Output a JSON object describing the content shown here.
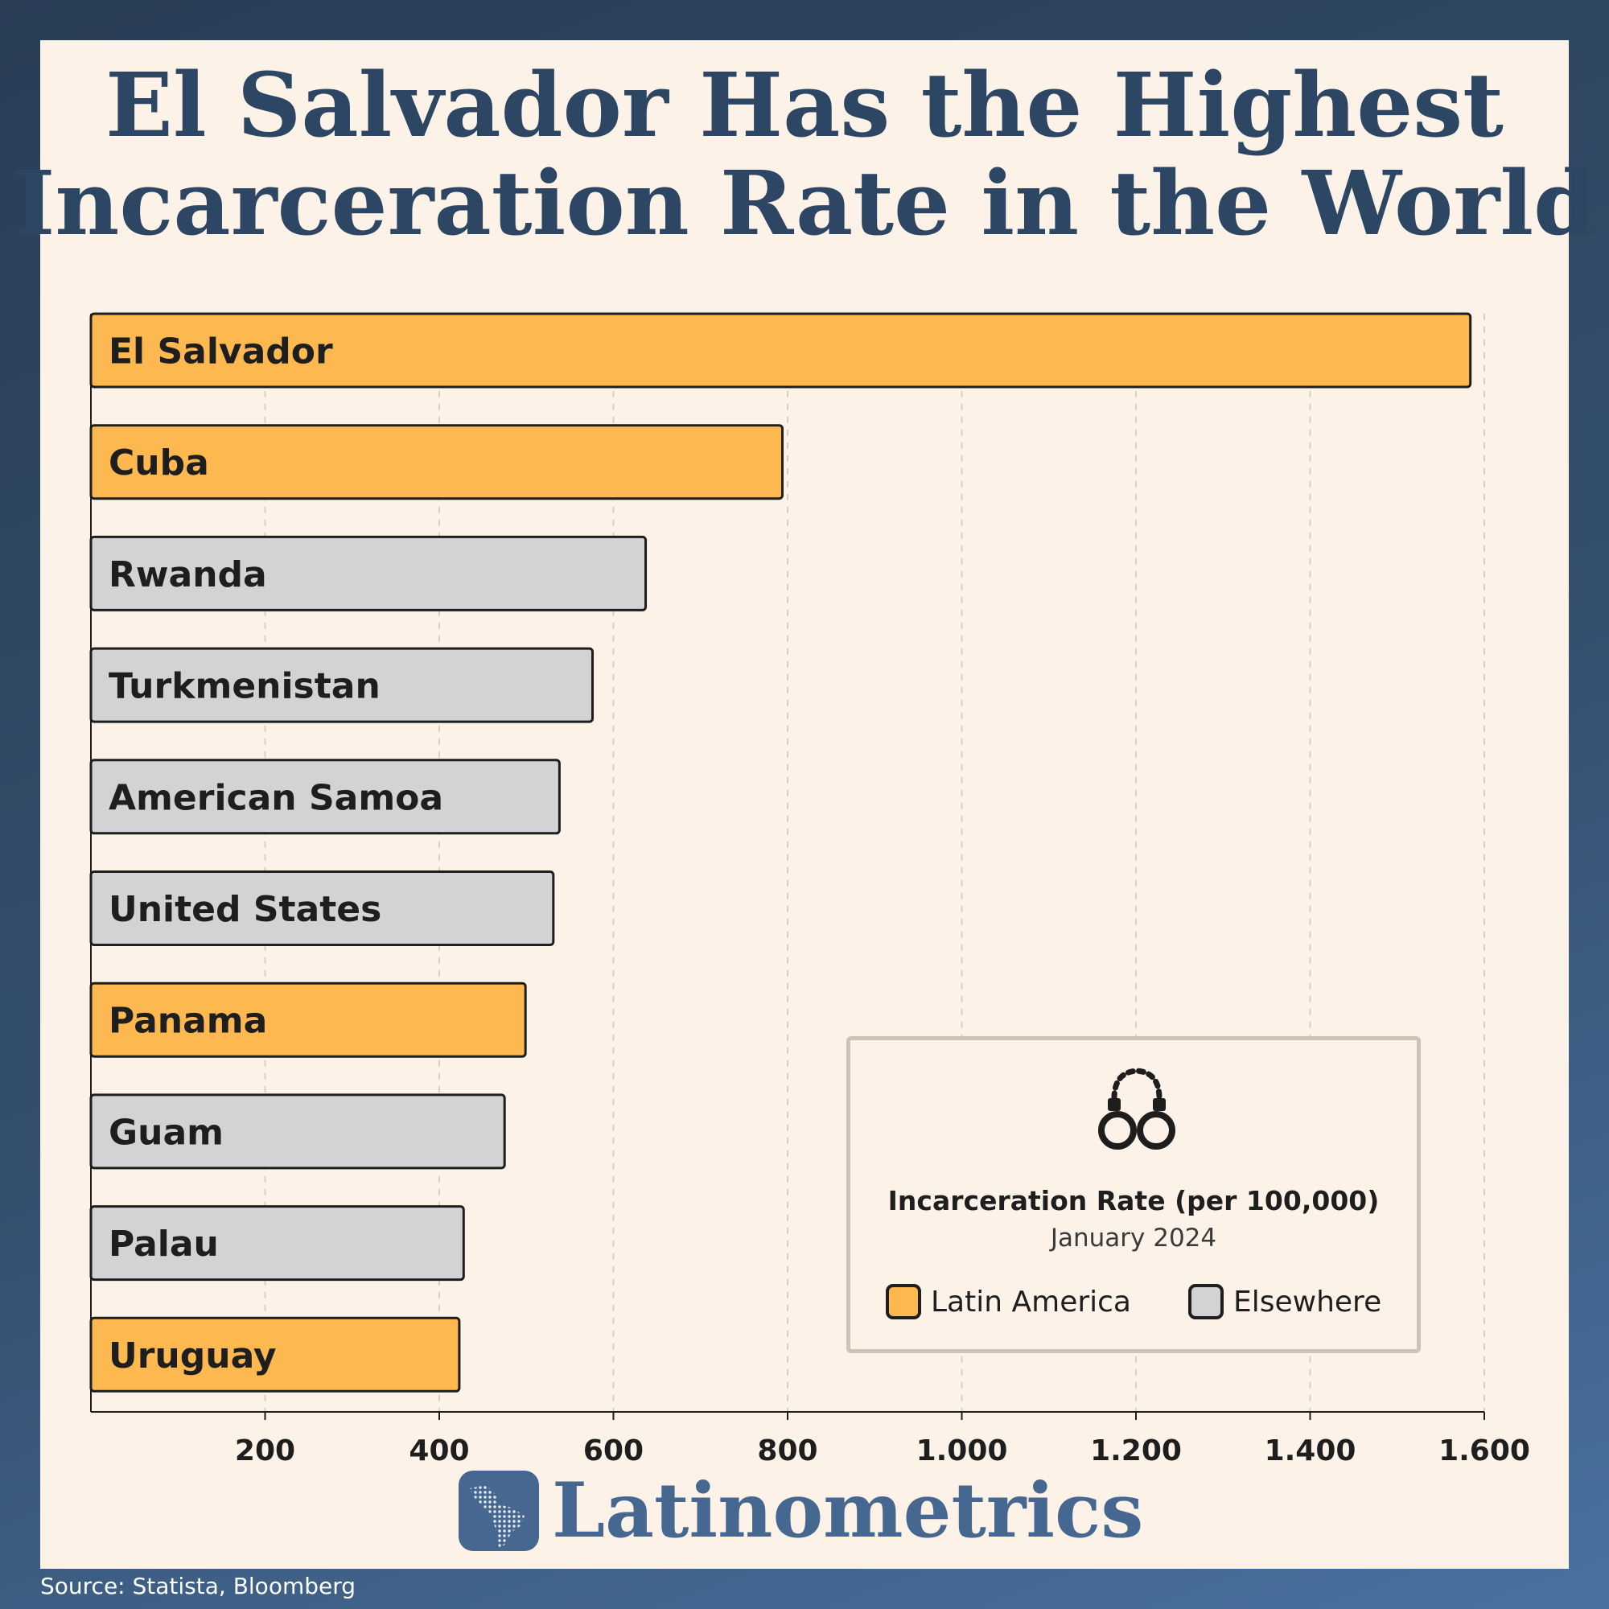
{
  "title": {
    "line1": "El Salvador Has the Highest",
    "line2": "Incarceration Rate in the World"
  },
  "legend": {
    "icon": "handcuffs-icon",
    "title": "Incarceration Rate (per 100,000)",
    "subtitle": "January 2024",
    "items": [
      {
        "label": "Latin America",
        "color": "#fdb94f"
      },
      {
        "label": "Elsewhere",
        "color": "#d3d3d5"
      }
    ]
  },
  "brand": {
    "name": "Latinometrics",
    "icon": "latin-america-map-icon",
    "color": "#46678f"
  },
  "source": "Source: Statista, Bloomberg",
  "chart_data": {
    "type": "bar",
    "orientation": "horizontal",
    "categories": [
      "El Salvador",
      "Cuba",
      "Rwanda",
      "Turkmenistan",
      "American Samoa",
      "United States",
      "Panama",
      "Guam",
      "Palau",
      "Uruguay"
    ],
    "values": [
      1584,
      794,
      637,
      576,
      538,
      531,
      499,
      475,
      428,
      423
    ],
    "groups": [
      "Latin America",
      "Latin America",
      "Elsewhere",
      "Elsewhere",
      "Elsewhere",
      "Elsewhere",
      "Latin America",
      "Elsewhere",
      "Elsewhere",
      "Latin America"
    ],
    "colors": {
      "Latin America": "#fdb94f",
      "Elsewhere": "#d3d3d5"
    },
    "xticks": [
      200,
      400,
      600,
      800,
      1000,
      1200,
      1400,
      1600
    ],
    "xtick_labels": [
      "200",
      "400",
      "600",
      "800",
      "1.000",
      "1.200",
      "1.400",
      "1.600"
    ],
    "xlim": [
      0,
      1600
    ],
    "grid": "vertical dashed",
    "legend_position": "bottom-right"
  }
}
